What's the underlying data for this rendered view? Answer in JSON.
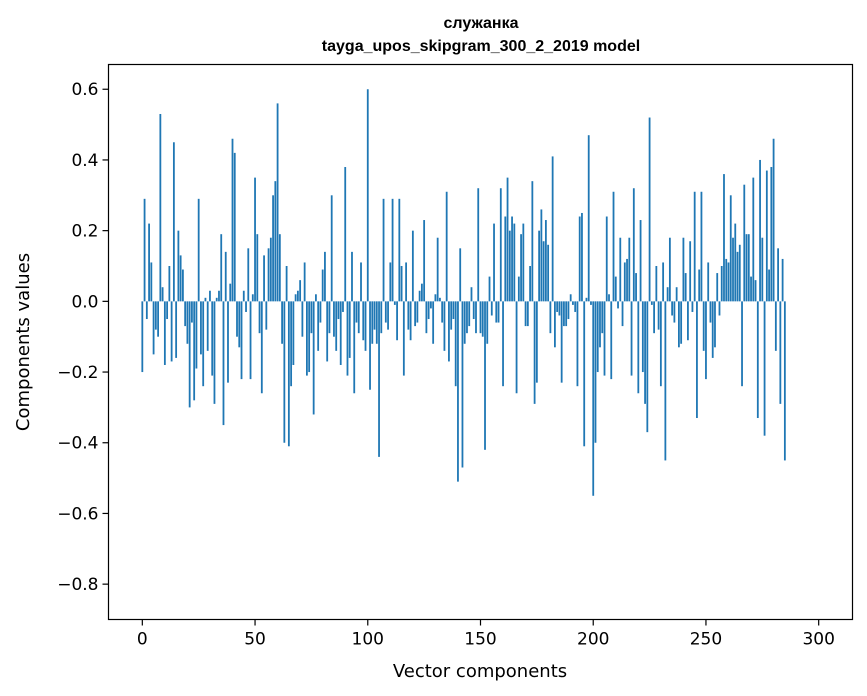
{
  "chart_data": {
    "type": "bar",
    "title_line1": "служанка",
    "title_line2": "tayga_upos_skipgram_300_2_2019 model",
    "xlabel": "Vector components",
    "ylabel": "Components values",
    "xlim": [
      -15,
      315
    ],
    "ylim": [
      -0.9,
      0.67
    ],
    "x_ticks": [
      0,
      50,
      100,
      150,
      200,
      250,
      300
    ],
    "x_tick_labels": [
      "0",
      "50",
      "100",
      "150",
      "200",
      "250",
      "300"
    ],
    "y_ticks": [
      -0.8,
      -0.6,
      -0.4,
      -0.2,
      0.0,
      0.2,
      0.4,
      0.6
    ],
    "y_tick_labels": [
      "−0.8",
      "−0.6",
      "−0.4",
      "−0.2",
      "0.0",
      "0.2",
      "0.4",
      "0.6"
    ],
    "bar_color": "#1f77b4",
    "series": [
      {
        "name": "служанка",
        "values": [
          -0.2,
          0.29,
          -0.05,
          0.22,
          0.11,
          -0.15,
          -0.08,
          -0.1,
          0.53,
          0.04,
          -0.18,
          -0.05,
          0.1,
          -0.17,
          0.45,
          -0.16,
          0.2,
          0.13,
          0.09,
          -0.07,
          -0.12,
          -0.3,
          -0.06,
          -0.28,
          -0.19,
          0.29,
          -0.15,
          -0.24,
          0.01,
          -0.14,
          0.03,
          -0.21,
          -0.29,
          0.01,
          0.03,
          0.19,
          -0.35,
          0.14,
          -0.23,
          0.05,
          0.46,
          0.42,
          -0.1,
          -0.13,
          -0.22,
          0.03,
          -0.03,
          0.15,
          -0.22,
          0.02,
          0.35,
          0.19,
          -0.09,
          -0.26,
          0.13,
          -0.08,
          0.15,
          0.18,
          0.3,
          0.34,
          0.56,
          0.19,
          -0.12,
          -0.4,
          0.1,
          -0.41,
          -0.24,
          -0.18,
          0.02,
          0.03,
          0.06,
          -0.1,
          0.11,
          -0.21,
          -0.2,
          -0.09,
          -0.32,
          0.02,
          -0.14,
          -0.06,
          0.09,
          0.14,
          -0.17,
          -0.09,
          0.3,
          -0.1,
          -0.14,
          -0.05,
          -0.18,
          -0.03,
          0.38,
          -0.21,
          -0.16,
          0.14,
          -0.26,
          -0.06,
          -0.09,
          0.11,
          -0.11,
          -0.14,
          0.6,
          -0.25,
          -0.12,
          -0.08,
          -0.12,
          -0.44,
          -0.09,
          0.29,
          -0.06,
          -0.08,
          0.11,
          0.29,
          -0.01,
          -0.11,
          0.29,
          0.1,
          -0.21,
          0.11,
          -0.08,
          -0.11,
          0.2,
          -0.07,
          -0.06,
          0.03,
          0.05,
          0.23,
          -0.09,
          -0.05,
          -0.02,
          -0.12,
          0.02,
          0.18,
          0.01,
          -0.06,
          -0.14,
          0.31,
          -0.17,
          -0.08,
          -0.05,
          -0.24,
          -0.51,
          0.15,
          -0.47,
          -0.12,
          -0.09,
          -0.07,
          0.04,
          -0.05,
          -0.09,
          0.32,
          -0.09,
          -0.1,
          -0.42,
          -0.12,
          0.07,
          -0.04,
          0.22,
          -0.06,
          -0.06,
          0.32,
          -0.24,
          0.24,
          0.35,
          0.2,
          0.24,
          0.22,
          -0.26,
          0.07,
          0.19,
          0.22,
          -0.07,
          -0.07,
          0.1,
          0.34,
          -0.29,
          -0.23,
          0.2,
          0.26,
          0.17,
          0.23,
          0.16,
          -0.09,
          0.41,
          -0.13,
          -0.03,
          -0.04,
          -0.23,
          -0.07,
          -0.07,
          -0.05,
          0.02,
          -0.01,
          -0.03,
          -0.24,
          0.24,
          0.25,
          -0.41,
          0.01,
          0.47,
          -0.01,
          -0.55,
          -0.4,
          -0.2,
          -0.13,
          -0.09,
          -0.21,
          0.24,
          0.02,
          -0.22,
          0.31,
          0.07,
          -0.02,
          0.18,
          -0.07,
          0.11,
          0.12,
          0.18,
          -0.21,
          0.32,
          0.08,
          -0.26,
          0.23,
          -0.2,
          -0.29,
          -0.37,
          0.52,
          -0.01,
          -0.09,
          0.1,
          -0.08,
          -0.24,
          0.11,
          -0.45,
          0.04,
          0.18,
          -0.04,
          -0.06,
          0.04,
          -0.13,
          -0.12,
          0.18,
          0.08,
          -0.11,
          0.17,
          -0.03,
          0.31,
          -0.33,
          0.09,
          0.31,
          -0.14,
          -0.22,
          0.11,
          -0.06,
          -0.16,
          -0.13,
          0.08,
          -0.04,
          0.1,
          0.36,
          0.12,
          0.11,
          0.3,
          0.18,
          0.22,
          0.14,
          0.16,
          -0.24,
          0.33,
          0.19,
          0.19,
          0.07,
          0.35,
          0.06,
          -0.33,
          0.4,
          0.18,
          -0.38,
          0.37,
          0.09,
          0.38,
          0.46,
          -0.14,
          0.15,
          -0.29,
          0.12,
          -0.45
        ]
      }
    ]
  }
}
